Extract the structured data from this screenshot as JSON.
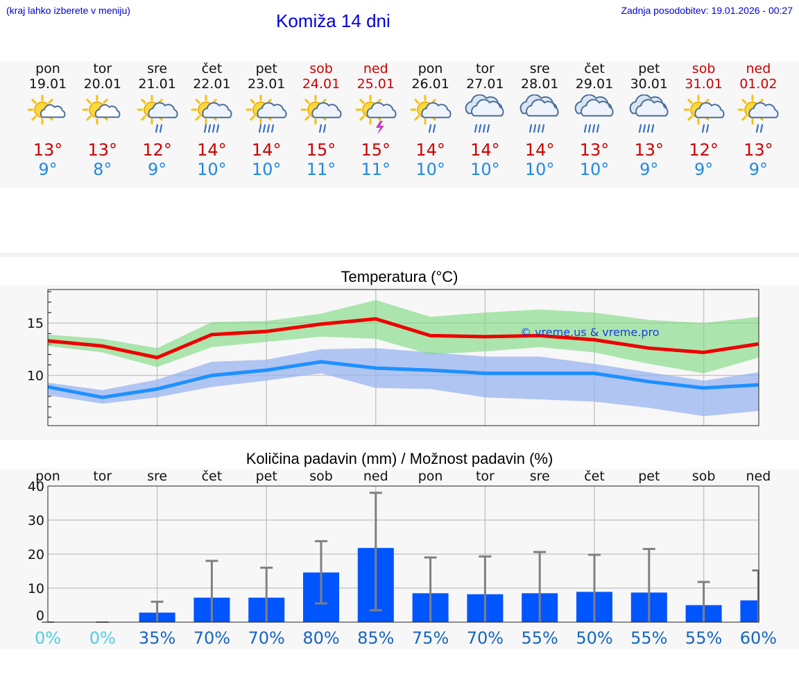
{
  "header": {
    "hint": "(kraj lahko izberete v meniju)",
    "title": "Komiža 14 dni",
    "updated": "Zadnja posodobitev: 19.01.2026 - 00:27"
  },
  "colors": {
    "max": "#ee0000",
    "min": "#1e90ff",
    "weekend": "#cc0000",
    "bar": "#0055ff"
  },
  "days": [
    {
      "name": "pon",
      "date": "19.01",
      "icon": "sun-cloud-icon",
      "max": "13°",
      "min": "9°",
      "weekend": false
    },
    {
      "name": "tor",
      "date": "20.01",
      "icon": "sun-cloud-icon",
      "max": "13°",
      "min": "8°",
      "weekend": false
    },
    {
      "name": "sre",
      "date": "21.01",
      "icon": "sun-cloud-rain-icon",
      "max": "12°",
      "min": "9°",
      "weekend": false
    },
    {
      "name": "čet",
      "date": "22.01",
      "icon": "sun-cloud-heavy-rain-icon",
      "max": "14°",
      "min": "10°",
      "weekend": false
    },
    {
      "name": "pet",
      "date": "23.01",
      "icon": "sun-cloud-heavy-rain-icon",
      "max": "14°",
      "min": "10°",
      "weekend": false
    },
    {
      "name": "sob",
      "date": "24.01",
      "icon": "sun-cloud-rain-icon",
      "max": "15°",
      "min": "11°",
      "weekend": true
    },
    {
      "name": "ned",
      "date": "25.01",
      "icon": "sun-cloud-storm-icon",
      "max": "15°",
      "min": "11°",
      "weekend": true
    },
    {
      "name": "pon",
      "date": "26.01",
      "icon": "sun-cloud-rain-icon",
      "max": "14°",
      "min": "10°",
      "weekend": false
    },
    {
      "name": "tor",
      "date": "27.01",
      "icon": "cloud-heavy-rain-icon",
      "max": "14°",
      "min": "10°",
      "weekend": false
    },
    {
      "name": "sre",
      "date": "28.01",
      "icon": "cloud-heavy-rain-icon",
      "max": "14°",
      "min": "10°",
      "weekend": false
    },
    {
      "name": "čet",
      "date": "29.01",
      "icon": "cloud-heavy-rain-icon",
      "max": "13°",
      "min": "10°",
      "weekend": false
    },
    {
      "name": "pet",
      "date": "30.01",
      "icon": "cloud-heavy-rain-icon",
      "max": "13°",
      "min": "9°",
      "weekend": false
    },
    {
      "name": "sob",
      "date": "31.01",
      "icon": "sun-cloud-rain-icon",
      "max": "12°",
      "min": "9°",
      "weekend": true
    },
    {
      "name": "ned",
      "date": "01.02",
      "icon": "sun-cloud-rain-icon",
      "max": "13°",
      "min": "9°",
      "weekend": true
    }
  ],
  "chart_data": [
    {
      "type": "line",
      "title": "Temperatura (°C)",
      "watermark": "© vreme.us & vreme.pro",
      "yticks": [
        "15",
        "10"
      ],
      "ylim": [
        5.2,
        18.2
      ],
      "x": [
        0,
        1,
        2,
        3,
        4,
        5,
        6,
        7,
        8,
        9,
        10,
        11,
        12,
        13
      ],
      "series": [
        {
          "name": "max",
          "values": [
            13.3,
            12.8,
            11.7,
            13.9,
            14.2,
            14.9,
            15.4,
            13.8,
            13.7,
            13.8,
            13.4,
            12.6,
            12.2,
            13.0
          ]
        },
        {
          "name": "min",
          "values": [
            8.9,
            7.9,
            8.7,
            10.0,
            10.5,
            11.3,
            10.7,
            10.5,
            10.2,
            10.2,
            10.2,
            9.4,
            8.8,
            9.1
          ]
        }
      ],
      "bands": [
        {
          "name": "max-range",
          "upper": [
            13.9,
            13.5,
            12.6,
            15.1,
            15.2,
            15.9,
            17.2,
            15.6,
            16.0,
            16.3,
            16.0,
            15.3,
            15.0,
            15.6
          ],
          "lower": [
            12.8,
            12.2,
            10.8,
            12.7,
            13.2,
            13.7,
            13.5,
            12.0,
            12.3,
            12.7,
            12.2,
            11.1,
            10.2,
            11.7
          ]
        },
        {
          "name": "min-range",
          "upper": [
            9.3,
            8.6,
            9.6,
            11.3,
            11.5,
            12.5,
            12.6,
            12.2,
            11.8,
            11.8,
            11.1,
            10.3,
            9.5,
            10.3
          ],
          "lower": [
            8.1,
            7.3,
            7.9,
            8.9,
            9.5,
            10.2,
            8.8,
            8.7,
            7.9,
            7.7,
            7.5,
            6.9,
            6.1,
            6.6
          ]
        }
      ]
    },
    {
      "type": "bar",
      "title": "Količina padavin (mm) / Možnost padavin (%)",
      "categories": [
        "pon",
        "tor",
        "sre",
        "čet",
        "pet",
        "sob",
        "ned",
        "pon",
        "tor",
        "sre",
        "čet",
        "pet",
        "sob",
        "ned"
      ],
      "ylim": [
        0,
        40
      ],
      "yticks": [
        "40",
        "30",
        "20",
        "10",
        "0"
      ],
      "values": [
        0,
        0,
        2.8,
        7.2,
        7.2,
        14.6,
        21.8,
        8.5,
        8.2,
        8.5,
        8.9,
        8.7,
        5.0,
        6.4
      ],
      "err_low": [
        0,
        0,
        0,
        0,
        0,
        5.5,
        3.5,
        0,
        0,
        0,
        0,
        0,
        0,
        0
      ],
      "err_high": [
        0,
        0,
        6.0,
        18.0,
        16.0,
        23.8,
        38.0,
        19.0,
        19.3,
        20.6,
        19.8,
        21.5,
        11.8,
        15.2
      ],
      "probability": [
        "0%",
        "0%",
        "35%",
        "70%",
        "70%",
        "80%",
        "85%",
        "75%",
        "70%",
        "55%",
        "50%",
        "55%",
        "55%",
        "60%"
      ]
    }
  ]
}
